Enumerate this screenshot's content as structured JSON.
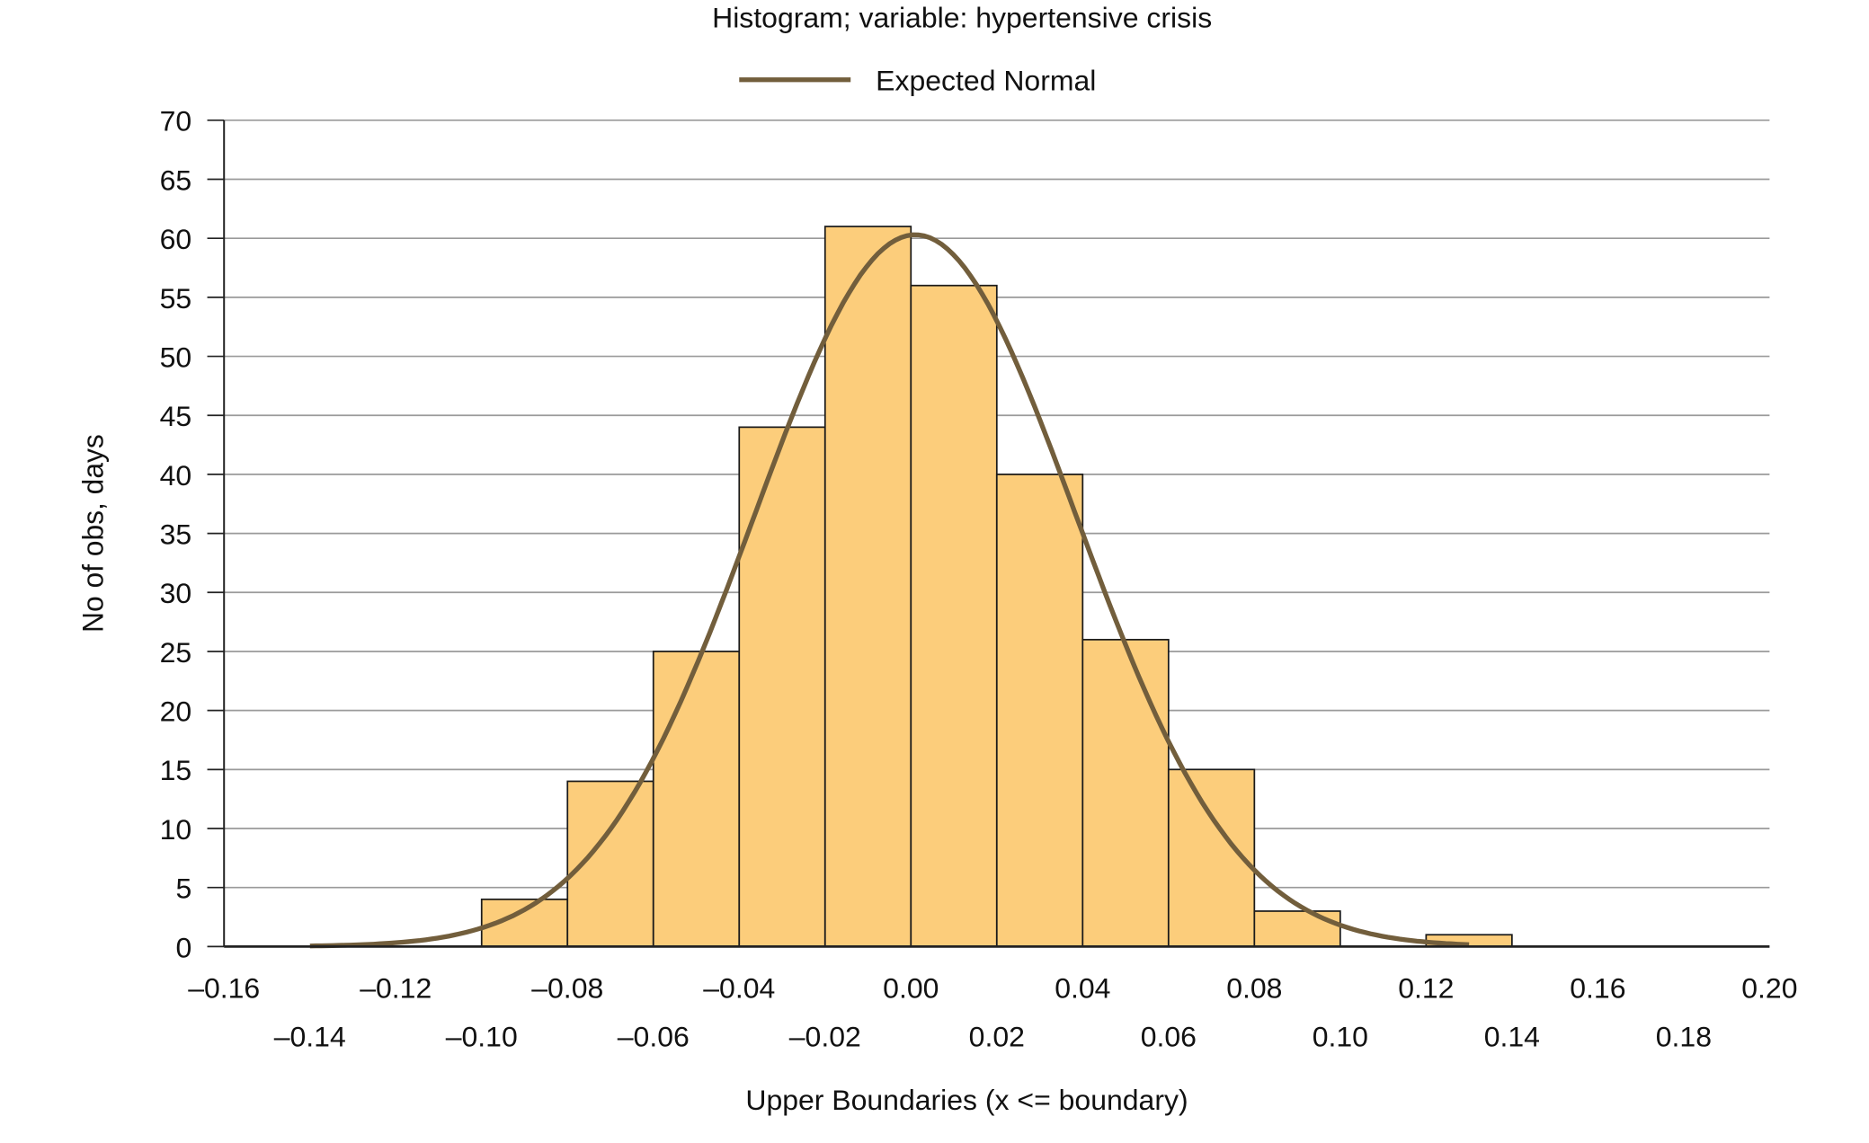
{
  "chart_data": {
    "type": "bar",
    "title": "Histogram; variable: hypertensive crisis",
    "xlabel": "Upper Boundaries (x <= boundary)",
    "ylabel": "No of obs, days",
    "legend": {
      "entries": [
        "Expected Normal"
      ],
      "placement": "top-center"
    },
    "xlim": [
      -0.16,
      0.2
    ],
    "ylim": [
      0,
      70
    ],
    "grid": true,
    "yticks": [
      0,
      5,
      10,
      15,
      20,
      25,
      30,
      35,
      40,
      45,
      50,
      55,
      60,
      65,
      70
    ],
    "xticks_row1": [
      "–0.16",
      "–0.12",
      "–0.08",
      "–0.04",
      "0.00",
      "0.04",
      "0.08",
      "0.12",
      "0.16",
      "0.20"
    ],
    "xticks_row1_values": [
      -0.16,
      -0.12,
      -0.08,
      -0.04,
      0.0,
      0.04,
      0.08,
      0.12,
      0.16,
      0.2
    ],
    "xticks_row2": [
      "–0.14",
      "–0.10",
      "–0.06",
      "–0.02",
      "0.02",
      "0.06",
      "0.10",
      "0.14",
      "0.18"
    ],
    "xticks_row2_values": [
      -0.14,
      -0.1,
      -0.06,
      -0.02,
      0.02,
      0.06,
      0.1,
      0.14,
      0.18
    ],
    "bins": [
      {
        "from": -0.1,
        "to": -0.08,
        "count": 4
      },
      {
        "from": -0.08,
        "to": -0.06,
        "count": 14
      },
      {
        "from": -0.06,
        "to": -0.04,
        "count": 25
      },
      {
        "from": -0.04,
        "to": -0.02,
        "count": 44
      },
      {
        "from": -0.02,
        "to": 0.0,
        "count": 61
      },
      {
        "from": 0.0,
        "to": 0.02,
        "count": 56
      },
      {
        "from": 0.02,
        "to": 0.04,
        "count": 40
      },
      {
        "from": 0.04,
        "to": 0.06,
        "count": 26
      },
      {
        "from": 0.06,
        "to": 0.08,
        "count": 15
      },
      {
        "from": 0.08,
        "to": 0.1,
        "count": 3
      },
      {
        "from": 0.1,
        "to": 0.12,
        "count": 0
      },
      {
        "from": 0.12,
        "to": 0.14,
        "count": 1
      }
    ],
    "normal_curve": {
      "name": "Expected Normal",
      "mean": 0.001,
      "sd": 0.0374,
      "peak": 60.3,
      "x_range": [
        -0.14,
        0.13
      ]
    },
    "colors": {
      "bar": "#fccd7b",
      "bar_border": "#1a1a1a",
      "curve": "#725e3c",
      "grid": "#9a9a9a"
    }
  }
}
